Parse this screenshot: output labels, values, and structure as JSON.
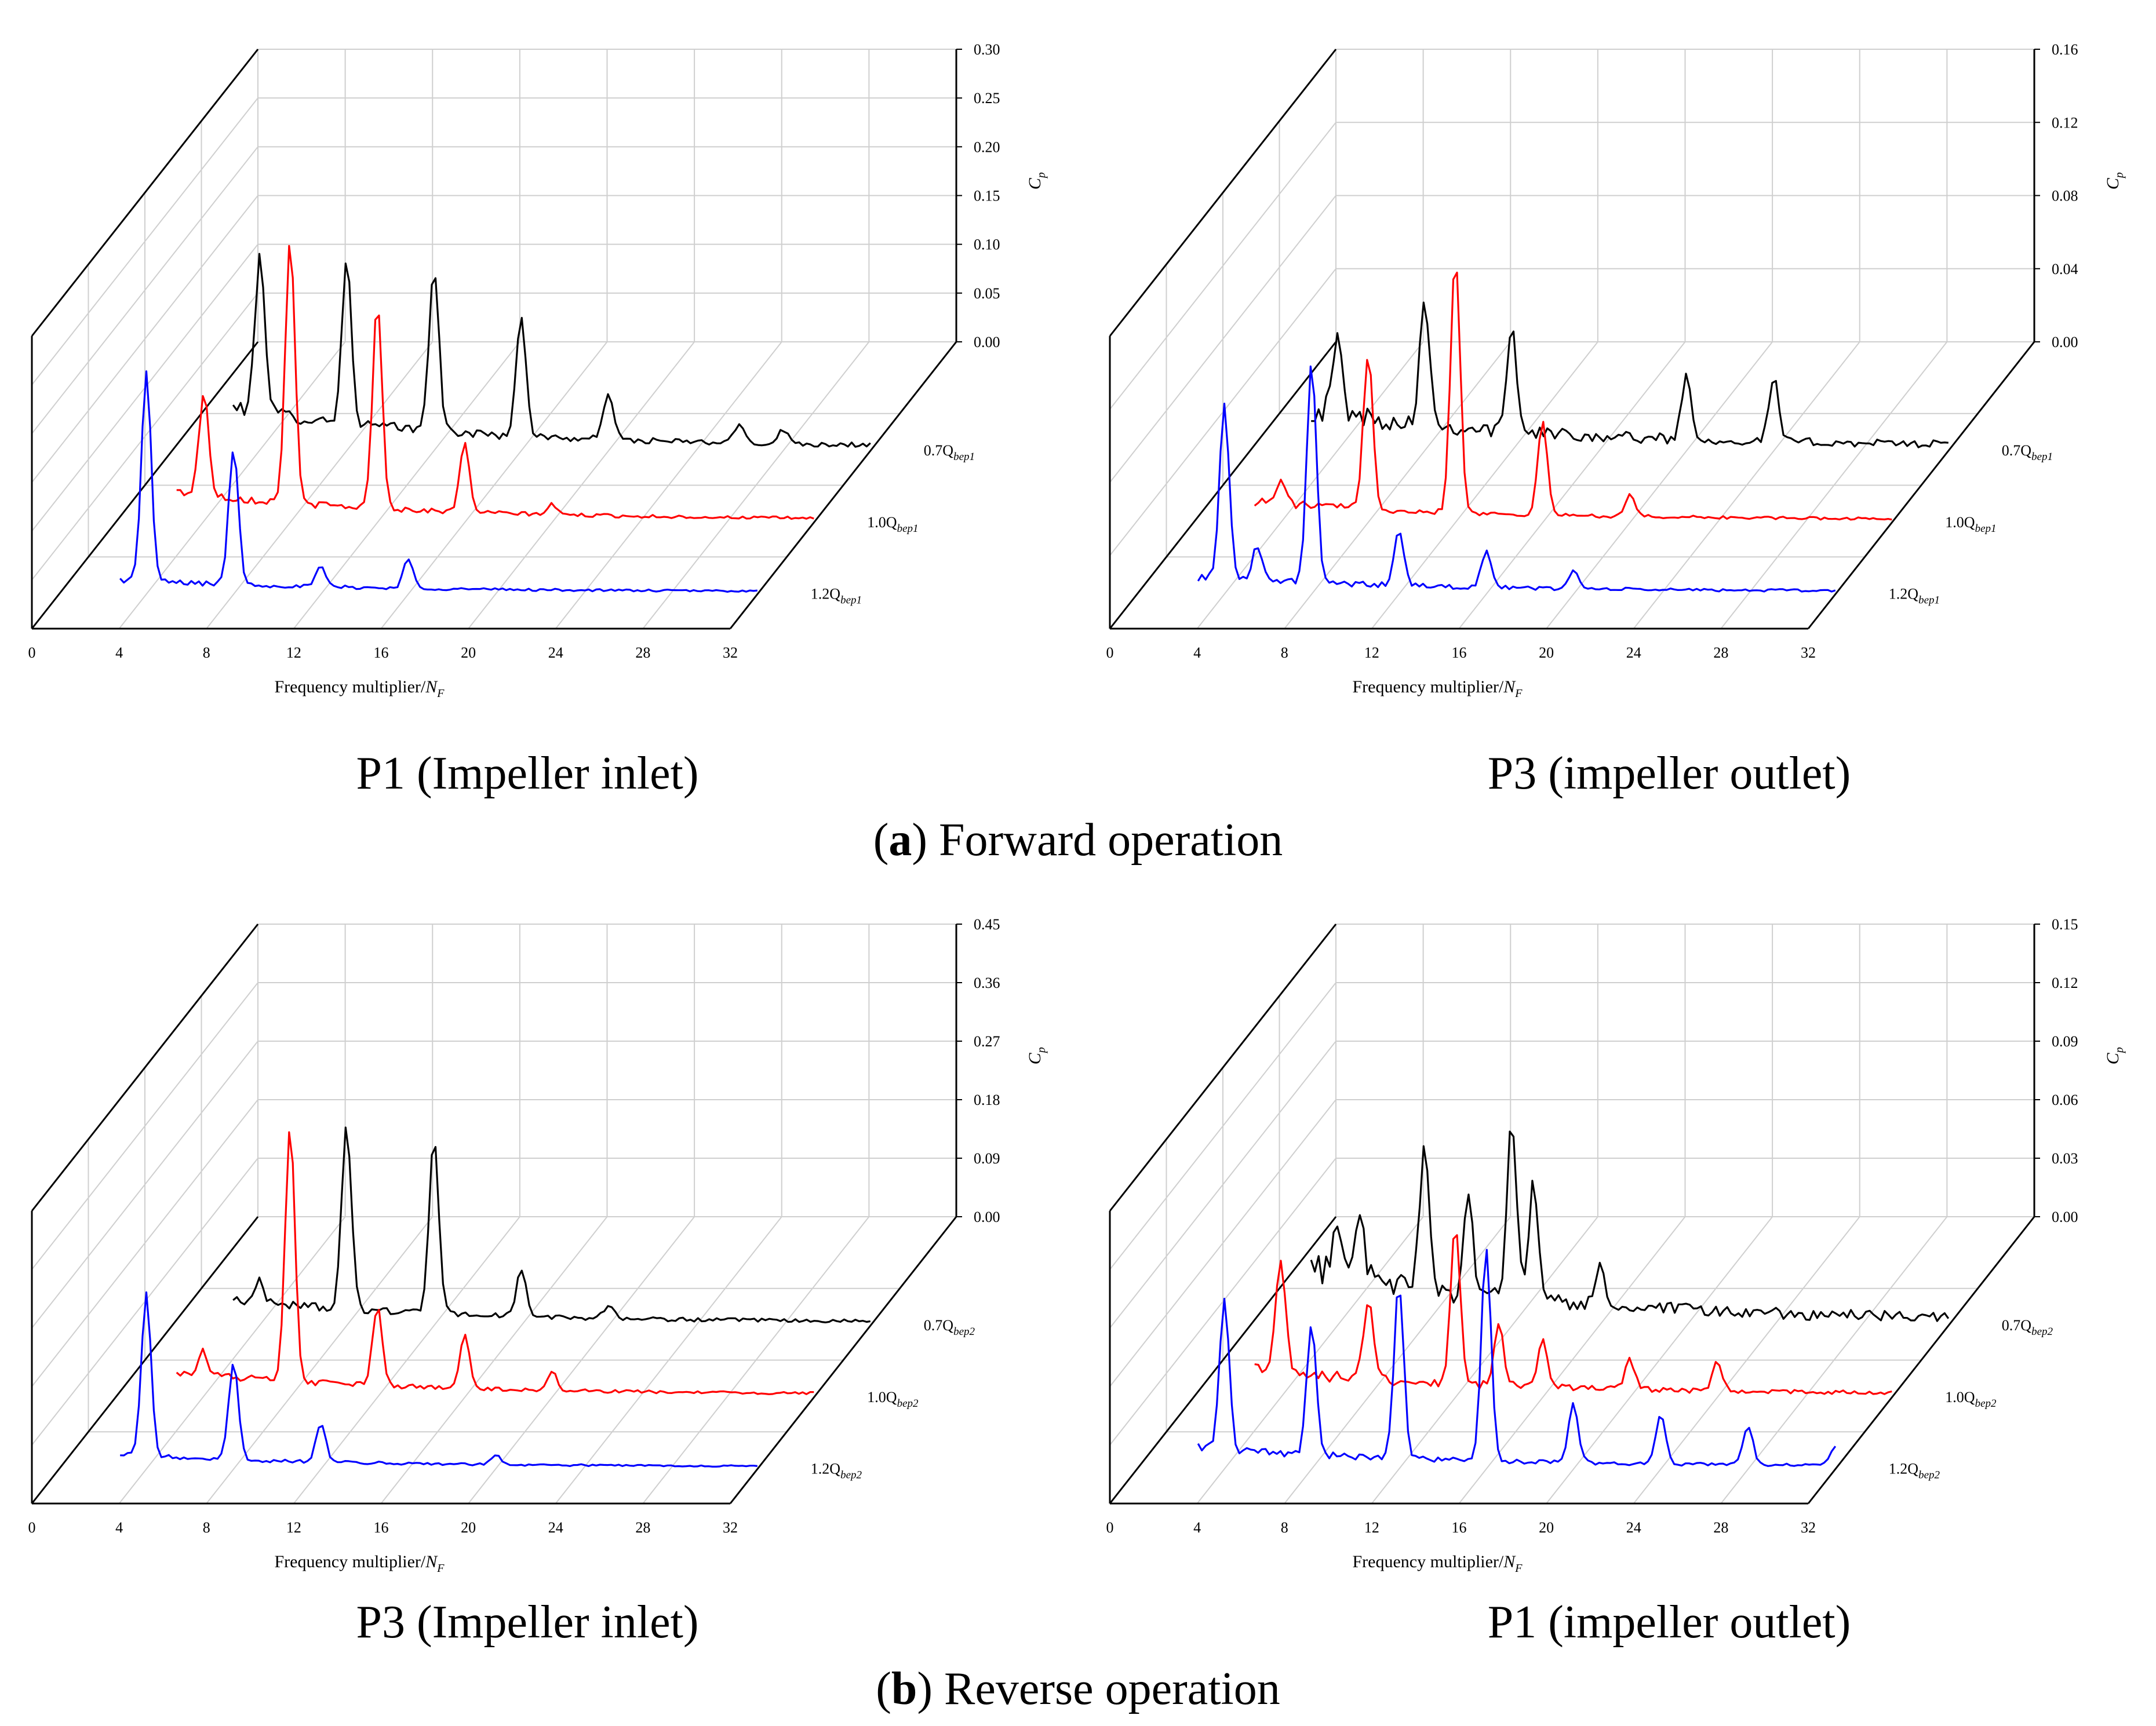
{
  "section_a": {
    "letter": "a",
    "text": ") Forward operation",
    "open": "("
  },
  "section_b": {
    "letter": "b",
    "text": ") Reverse operation",
    "open": "("
  },
  "colors": {
    "flow_07": "#000000",
    "flow_10": "#ff0000",
    "flow_12": "#0000ff",
    "grid": "#cfcfcf"
  },
  "chart_data": [
    {
      "id": "p1-forward",
      "type": "line",
      "caption": "P1 (Impeller inlet)",
      "xlabel": "Frequency multiplier/",
      "xlabel_var": "N",
      "xlabel_sub": "F",
      "ylabel": "C",
      "ylabel_sub": "p",
      "x_ticks": [
        0,
        4,
        8,
        12,
        16,
        20,
        24,
        28,
        32
      ],
      "xlim": [
        0,
        32
      ],
      "y_ticks": [
        "0.00",
        "0.05",
        "0.10",
        "0.15",
        "0.20",
        "0.25",
        "0.30"
      ],
      "ylim": [
        0,
        0.3
      ],
      "series": [
        {
          "name": "0.7Q",
          "sub": "bep1",
          "color": "#000000",
          "base": 0.035,
          "noise": 0.012,
          "noise_decay": 0.004,
          "peaks": [
            [
              4.0,
              0.1
            ],
            [
              4.1,
              0.065
            ],
            [
              8.0,
              0.165
            ],
            [
              12.0,
              0.17
            ],
            [
              16.0,
              0.125
            ],
            [
              20.0,
              0.05
            ],
            [
              26.0,
              0.02
            ],
            [
              28.0,
              0.015
            ]
          ]
        },
        {
          "name": "1.0Q",
          "sub": "bep1",
          "color": "#ff0000",
          "base": 0.025,
          "noise": 0.008,
          "noise_decay": 0.002,
          "peaks": [
            [
              4.0,
              0.055
            ],
            [
              4.1,
              0.05
            ],
            [
              8.0,
              0.27
            ],
            [
              12.0,
              0.21
            ],
            [
              16.0,
              0.07
            ],
            [
              20.0,
              0.01
            ]
          ]
        },
        {
          "name": "1.2Q",
          "sub": "bep1",
          "color": "#0000ff",
          "base": 0.01,
          "noise": 0.005,
          "noise_decay": 0.0015,
          "peaks": [
            [
              4.0,
              0.215
            ],
            [
              8.0,
              0.14
            ],
            [
              12.0,
              0.02
            ],
            [
              16.0,
              0.03
            ]
          ]
        }
      ]
    },
    {
      "id": "p3-forward",
      "type": "line",
      "caption": "P3 (impeller outlet)",
      "xlabel": "Frequency multiplier/",
      "xlabel_var": "N",
      "xlabel_sub": "F",
      "ylabel": "C",
      "ylabel_sub": "p",
      "x_ticks": [
        0,
        4,
        8,
        12,
        16,
        20,
        24,
        28,
        32
      ],
      "xlim": [
        0,
        32
      ],
      "y_ticks": [
        "0.00",
        "0.04",
        "0.08",
        "0.12",
        "0.16"
      ],
      "ylim": [
        0,
        0.16
      ],
      "series": [
        {
          "name": "0.7Q",
          "sub": "bep1",
          "color": "#000000",
          "base": 0.015,
          "noise": 0.01,
          "noise_decay": 0.003,
          "peaks": [
            [
              4.0,
              0.04
            ],
            [
              8.0,
              0.07
            ],
            [
              12.0,
              0.055
            ],
            [
              20.0,
              0.035
            ],
            [
              24.0,
              0.035
            ]
          ]
        },
        {
          "name": "1.0Q",
          "sub": "bep1",
          "color": "#ff0000",
          "base": 0.008,
          "noise": 0.004,
          "noise_decay": 0.001,
          "peaks": [
            [
              4.0,
              0.012
            ],
            [
              8.0,
              0.085
            ],
            [
              12.0,
              0.14
            ],
            [
              16.0,
              0.05
            ],
            [
              20.0,
              0.012
            ]
          ]
        },
        {
          "name": "1.2Q",
          "sub": "bep1",
          "color": "#0000ff",
          "base": 0.006,
          "noise": 0.004,
          "noise_decay": 0.001,
          "peaks": [
            [
              4.0,
              0.095
            ],
            [
              5.5,
              0.02
            ],
            [
              8.0,
              0.12
            ],
            [
              12.0,
              0.03
            ],
            [
              16.0,
              0.02
            ],
            [
              20.0,
              0.01
            ]
          ]
        }
      ]
    },
    {
      "id": "p3-reverse",
      "type": "line",
      "caption": "P3 (Impeller inlet)",
      "xlabel": "Frequency multiplier/",
      "xlabel_var": "N",
      "xlabel_sub": "F",
      "ylabel": "C",
      "ylabel_sub": "p",
      "x_ticks": [
        0,
        4,
        8,
        12,
        16,
        20,
        24,
        28,
        32
      ],
      "xlim": [
        0,
        32
      ],
      "y_ticks": [
        "0.00",
        "0.09",
        "0.18",
        "0.27",
        "0.36",
        "0.45"
      ],
      "ylim": [
        0,
        0.45
      ],
      "series": [
        {
          "name": "0.7Q",
          "sub": "bep2",
          "color": "#000000",
          "base": 0.03,
          "noise": 0.012,
          "noise_decay": 0.004,
          "peaks": [
            [
              4.0,
              0.03
            ],
            [
              8.0,
              0.28
            ],
            [
              12.0,
              0.27
            ],
            [
              16.0,
              0.07
            ],
            [
              20.0,
              0.02
            ]
          ]
        },
        {
          "name": "1.0Q",
          "sub": "bep2",
          "color": "#ff0000",
          "base": 0.03,
          "noise": 0.01,
          "noise_decay": 0.003,
          "peaks": [
            [
              4.0,
              0.035
            ],
            [
              8.0,
              0.39
            ],
            [
              12.0,
              0.12
            ],
            [
              16.0,
              0.085
            ],
            [
              20.0,
              0.03
            ]
          ]
        },
        {
          "name": "1.2Q",
          "sub": "bep2",
          "color": "#0000ff",
          "base": 0.015,
          "noise": 0.006,
          "noise_decay": 0.002,
          "peaks": [
            [
              4.0,
              0.25
            ],
            [
              8.0,
              0.15
            ],
            [
              12.0,
              0.06
            ],
            [
              20.0,
              0.015
            ]
          ]
        }
      ]
    },
    {
      "id": "p1-reverse",
      "type": "line",
      "caption": "P1 (impeller outlet)",
      "xlabel": "Frequency multiplier/",
      "xlabel_var": "N",
      "xlabel_sub": "F",
      "ylabel": "C",
      "ylabel_sub": "p",
      "x_ticks": [
        0,
        4,
        8,
        12,
        16,
        20,
        24,
        28,
        32
      ],
      "xlim": [
        0,
        32
      ],
      "y_ticks": [
        "0.00",
        "0.03",
        "0.06",
        "0.09",
        "0.12",
        "0.15"
      ],
      "ylim": [
        0,
        0.15
      ],
      "series": [
        {
          "name": "0.7Q",
          "sub": "bep2",
          "color": "#000000",
          "base": 0.02,
          "noise": 0.012,
          "noise_decay": 0.004,
          "peaks": [
            [
              4.0,
              0.03
            ],
            [
              5.0,
              0.035
            ],
            [
              8.0,
              0.075
            ],
            [
              10.0,
              0.05
            ],
            [
              12.0,
              0.09
            ],
            [
              13.0,
              0.06
            ],
            [
              16.0,
              0.02
            ]
          ]
        },
        {
          "name": "1.0Q",
          "sub": "bep2",
          "color": "#ff0000",
          "base": 0.01,
          "noise": 0.006,
          "noise_decay": 0.0015,
          "peaks": [
            [
              4.0,
              0.06
            ],
            [
              8.0,
              0.04
            ],
            [
              12.0,
              0.08
            ],
            [
              14.0,
              0.03
            ],
            [
              16.0,
              0.025
            ],
            [
              20.0,
              0.015
            ],
            [
              24.0,
              0.015
            ]
          ]
        },
        {
          "name": "1.2Q",
          "sub": "bep2",
          "color": "#0000ff",
          "base": 0.008,
          "noise": 0.004,
          "noise_decay": 0.001,
          "peaks": [
            [
              4.0,
              0.075
            ],
            [
              8.0,
              0.065
            ],
            [
              12.0,
              0.09
            ],
            [
              16.0,
              0.11
            ],
            [
              20.0,
              0.03
            ],
            [
              24.0,
              0.025
            ],
            [
              28.0,
              0.02
            ],
            [
              32.0,
              0.01
            ]
          ]
        }
      ]
    }
  ]
}
